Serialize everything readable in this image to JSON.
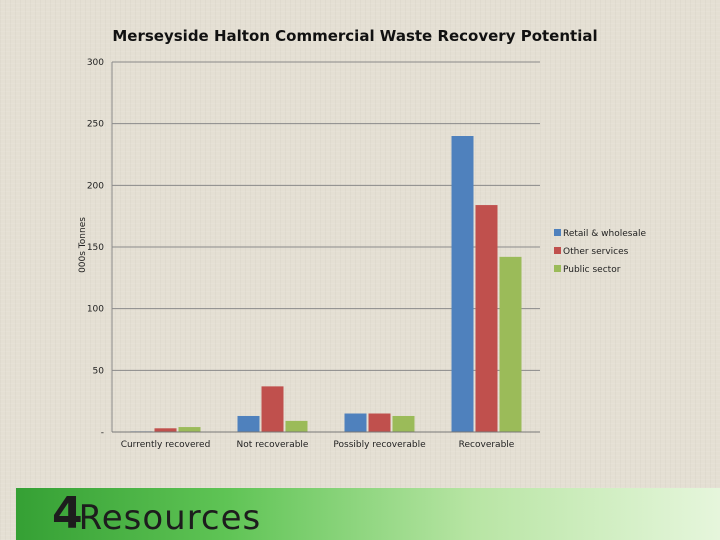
{
  "chart_data": {
    "type": "bar",
    "title": "Merseyside Halton Commercial Waste Recovery Potential",
    "ylabel": "000s Tonnes",
    "xlabel": "",
    "ylim": [
      0,
      300
    ],
    "yticks": [
      {
        "value": 0,
        "label": "-"
      },
      {
        "value": 50,
        "label": "50"
      },
      {
        "value": 100,
        "label": "100"
      },
      {
        "value": 150,
        "label": "150"
      },
      {
        "value": 200,
        "label": "200"
      },
      {
        "value": 250,
        "label": "250"
      },
      {
        "value": 300,
        "label": "300"
      }
    ],
    "categories": [
      "Currently recovered",
      "Not recoverable",
      "Possibly recoverable",
      "Recoverable"
    ],
    "series": [
      {
        "name": "Retail & wholesale",
        "color": "#4f81bd",
        "values": [
          0.5,
          13,
          15,
          240
        ]
      },
      {
        "name": "Other services",
        "color": "#c0504d",
        "values": [
          3,
          37,
          15,
          184
        ]
      },
      {
        "name": "Public sector",
        "color": "#9bbb59",
        "values": [
          4,
          9,
          13,
          142
        ]
      }
    ],
    "grid": true,
    "legend_position": "right"
  },
  "footer": {
    "logo_mark": "4",
    "logo_word": "Resources"
  }
}
